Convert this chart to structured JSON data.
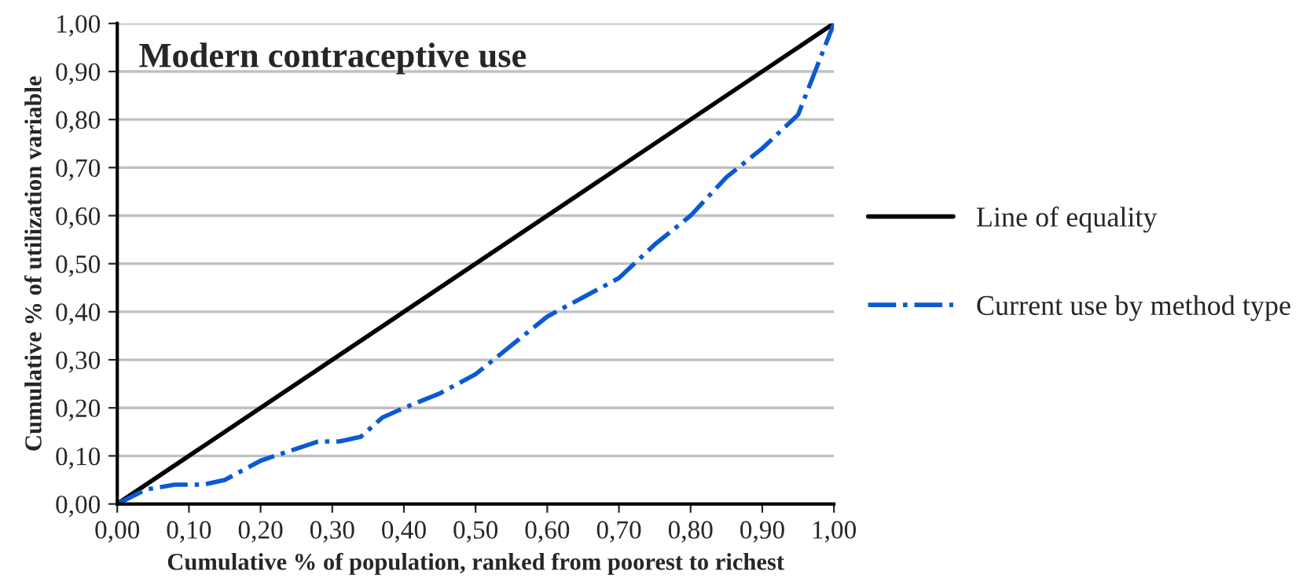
{
  "chart_data": {
    "type": "line",
    "title": "Modern contraceptive use",
    "xlabel": "Cumulative % of population, ranked from poorest to richest",
    "ylabel": "Cumulative % of utilization variable",
    "series": [
      {
        "name": "Line of equality",
        "color": "#000000",
        "line_style": "solid",
        "x": [
          0,
          1
        ],
        "values": [
          0,
          1
        ]
      },
      {
        "name": "Current use by method type",
        "color": "#0a5ad2",
        "line_style": "dashdot",
        "x": [
          0,
          0.04,
          0.08,
          0.12,
          0.15,
          0.2,
          0.24,
          0.28,
          0.31,
          0.34,
          0.37,
          0.4,
          0.45,
          0.5,
          0.55,
          0.6,
          0.65,
          0.7,
          0.75,
          0.8,
          0.85,
          0.9,
          0.95,
          1
        ],
        "values": [
          0,
          0.03,
          0.04,
          0.04,
          0.05,
          0.09,
          0.11,
          0.13,
          0.13,
          0.14,
          0.18,
          0.2,
          0.23,
          0.27,
          0.33,
          0.39,
          0.43,
          0.47,
          0.54,
          0.6,
          0.68,
          0.74,
          0.81,
          1
        ]
      }
    ],
    "xlim": [
      0,
      1
    ],
    "ylim": [
      0,
      1
    ],
    "xticks": [
      {
        "value": 0,
        "label": "0,00"
      },
      {
        "value": 0.1,
        "label": "0,10"
      },
      {
        "value": 0.2,
        "label": "0,20"
      },
      {
        "value": 0.3,
        "label": "0,30"
      },
      {
        "value": 0.4,
        "label": "0,40"
      },
      {
        "value": 0.5,
        "label": "0,50"
      },
      {
        "value": 0.6,
        "label": "0,60"
      },
      {
        "value": 0.7,
        "label": "0,70"
      },
      {
        "value": 0.8,
        "label": "0,80"
      },
      {
        "value": 0.9,
        "label": "0,90"
      },
      {
        "value": 1,
        "label": "1,00"
      }
    ],
    "yticks": [
      {
        "value": 0,
        "label": "0,00"
      },
      {
        "value": 0.1,
        "label": "0,10"
      },
      {
        "value": 0.2,
        "label": "0,20"
      },
      {
        "value": 0.3,
        "label": "0,30"
      },
      {
        "value": 0.4,
        "label": "0,40"
      },
      {
        "value": 0.5,
        "label": "0,50"
      },
      {
        "value": 0.6,
        "label": "0,60"
      },
      {
        "value": 0.7,
        "label": "0,70"
      },
      {
        "value": 0.8,
        "label": "0,80"
      },
      {
        "value": 0.9,
        "label": "0,90"
      },
      {
        "value": 1,
        "label": "1,00"
      }
    ],
    "grid": "y",
    "legend": "right"
  }
}
